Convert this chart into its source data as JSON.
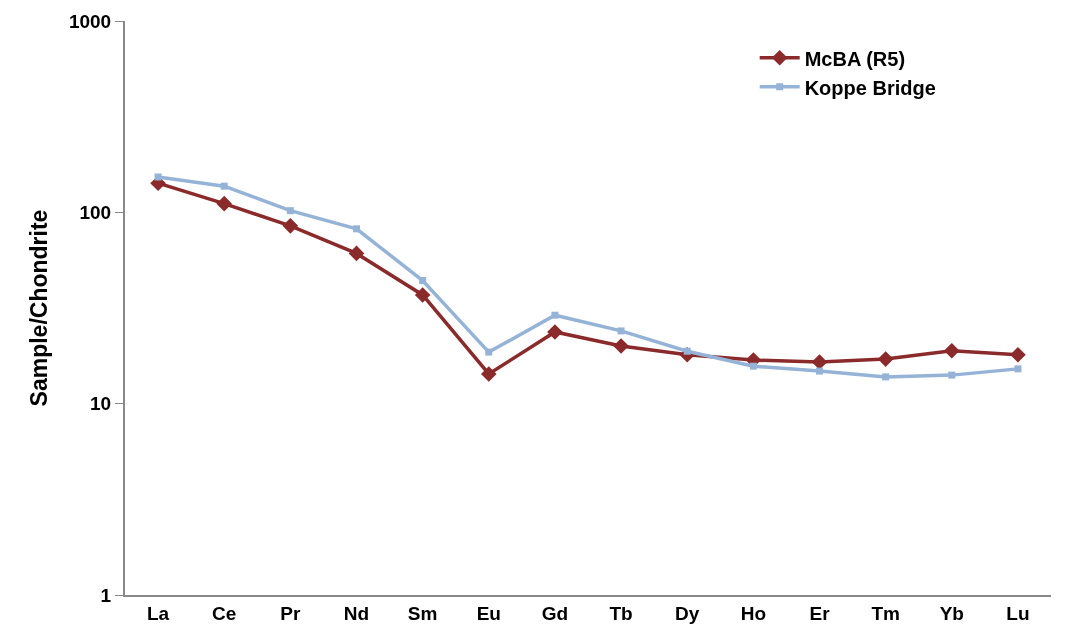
{
  "chart_data": {
    "type": "line",
    "ylabel": "Sample/Chondrite",
    "log": "y",
    "ylim": [
      1,
      1000
    ],
    "yticks": [
      1,
      10,
      100,
      1000
    ],
    "legend": "top right",
    "categories": [
      "La",
      "Ce",
      "Pr",
      "Nd",
      "Sm",
      "Eu",
      "Gd",
      "Tb",
      "Dy",
      "Ho",
      "Er",
      "Tm",
      "Yb",
      "Lu"
    ],
    "series": [
      {
        "name": "McBA (R5)",
        "color": "#8b2a2a",
        "marker": "diamond",
        "values": [
          142,
          111,
          85,
          61,
          37,
          14.3,
          23.7,
          20,
          18,
          16.9,
          16.5,
          17.1,
          18.9,
          18
        ]
      },
      {
        "name": "Koppe Bridge",
        "color": "#95b3d7",
        "marker": "square",
        "values": [
          153,
          137,
          102,
          82,
          44,
          18.6,
          29,
          24,
          18.8,
          15.7,
          14.8,
          13.8,
          14.1,
          15.2
        ]
      }
    ]
  }
}
